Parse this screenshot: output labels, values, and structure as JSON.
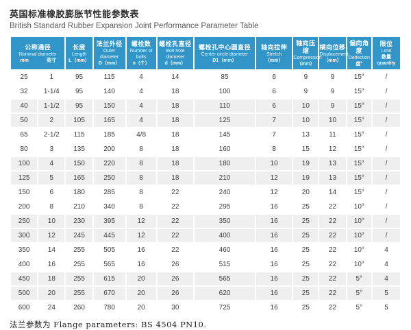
{
  "title": {
    "zh": "英国标准橡胶膨胀节性能参数表",
    "en": "British Standard Rubber Expansion Joint Performance Parameter Table"
  },
  "colors": {
    "header_bg": "#3195c8",
    "row_alt_bg": "#efefef",
    "header_text": "#ffffff"
  },
  "table": {
    "header": {
      "group": {
        "zh": "公称通径",
        "en": "Nominal diameter",
        "sub_left": "mm",
        "sub_right": "英寸"
      },
      "columns": [
        {
          "zh": "长度",
          "en": "Length",
          "unit": "L（mm）"
        },
        {
          "zh": "法兰外径",
          "en": "Outer diameter",
          "unit": "D（mm）"
        },
        {
          "zh": "螺栓数",
          "en": "Number of bolts",
          "unit": "n（个）"
        },
        {
          "zh": "螺栓孔直径",
          "en": "Bolt hole diameter",
          "unit": "d（mm）"
        },
        {
          "zh": "螺栓孔中心圆直径",
          "en": "Center circle diameter",
          "unit": "D1（mm）"
        },
        {
          "zh": "轴向拉伸",
          "en": "Stretch",
          "unit": "（mm）"
        },
        {
          "zh": "轴向压缩",
          "en": "Compression",
          "unit": "（mm）"
        },
        {
          "zh": "横向位移",
          "en": "Displacement",
          "unit": "（mm）"
        },
        {
          "zh": "偏向角度",
          "en": "Deflection",
          "unit": "度°"
        },
        {
          "zh": "限位",
          "en": "Limit",
          "unit": "数量 quantity"
        }
      ],
      "col_widths_pct": [
        7,
        7,
        7,
        8.4,
        7.9,
        9.6,
        16.1,
        9.6,
        6.6,
        7,
        6.5,
        7.3
      ]
    },
    "rows": [
      [
        "25",
        "1",
        "95",
        "115",
        "4",
        "14",
        "85",
        "6",
        "9",
        "9",
        "15°",
        "/"
      ],
      [
        "32",
        "1-1/4",
        "95",
        "140",
        "4",
        "18",
        "100",
        "6",
        "9",
        "9",
        "15°",
        "/"
      ],
      [
        "40",
        "1-1/2",
        "95",
        "150",
        "4",
        "18",
        "110",
        "6",
        "10",
        "9",
        "15°",
        "/"
      ],
      [
        "50",
        "2",
        "105",
        "165",
        "4",
        "18",
        "125",
        "7",
        "10",
        "10",
        "15°",
        "/"
      ],
      [
        "65",
        "2-1/2",
        "115",
        "185",
        "4/8",
        "18",
        "145",
        "7",
        "13",
        "11",
        "15°",
        "/"
      ],
      [
        "80",
        "3",
        "135",
        "200",
        "8",
        "18",
        "160",
        "8",
        "15",
        "12",
        "15°",
        "/"
      ],
      [
        "100",
        "4",
        "150",
        "220",
        "8",
        "18",
        "180",
        "10",
        "19",
        "13",
        "15°",
        "/"
      ],
      [
        "125",
        "5",
        "165",
        "250",
        "8",
        "18",
        "210",
        "12",
        "19",
        "13",
        "15°",
        "/"
      ],
      [
        "150",
        "6",
        "180",
        "285",
        "8",
        "22",
        "240",
        "12",
        "20",
        "14",
        "15°",
        "/"
      ],
      [
        "200",
        "8",
        "210",
        "340",
        "8",
        "22",
        "295",
        "16",
        "25",
        "22",
        "10°",
        "/"
      ],
      [
        "250",
        "10",
        "230",
        "395",
        "12",
        "22",
        "350",
        "16",
        "25",
        "22",
        "10°",
        "/"
      ],
      [
        "300",
        "12",
        "245",
        "445",
        "12",
        "22",
        "400",
        "16",
        "25",
        "22",
        "10°",
        "/"
      ],
      [
        "350",
        "14",
        "255",
        "505",
        "16",
        "22",
        "460",
        "16",
        "25",
        "22",
        "10°",
        "4"
      ],
      [
        "400",
        "16",
        "255",
        "565",
        "16",
        "26",
        "515",
        "16",
        "25",
        "22",
        "10°",
        "4"
      ],
      [
        "450",
        "18",
        "255",
        "615",
        "20",
        "26",
        "565",
        "16",
        "25",
        "22",
        "5°",
        "4"
      ],
      [
        "500",
        "20",
        "255",
        "670",
        "20",
        "26",
        "620",
        "16",
        "25",
        "22",
        "5°",
        "5"
      ],
      [
        "600",
        "24",
        "260",
        "780",
        "20",
        "30",
        "725",
        "16",
        "25",
        "22",
        "5°",
        "5"
      ]
    ]
  },
  "footer": {
    "note": "法兰参数为 Flange parameters: BS 4504 PN10."
  }
}
